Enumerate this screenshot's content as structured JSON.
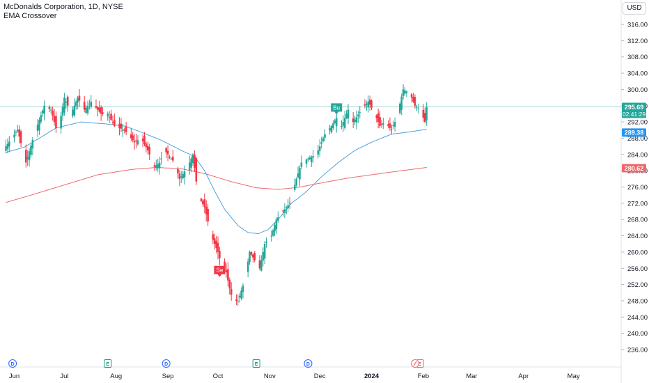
{
  "header": {
    "title": "McDonalds Corporation, 1D, NYSE",
    "indicator": "EMA Crossover",
    "currency_button": "USD"
  },
  "colors": {
    "up": "#26a69a",
    "down": "#f23645",
    "ema_fast": "#4aa3df",
    "ema_slow": "#f0676b",
    "price_line": "#26a69a",
    "buy_label": "#26a69a",
    "sell_label": "#f23645"
  },
  "chart_data": {
    "type": "candlestick",
    "ylim": [
      235.5,
      318.5
    ],
    "y_ticks": [
      "316.00",
      "312.00",
      "308.00",
      "304.00",
      "300.00",
      "296.00",
      "292.00",
      "288.00",
      "284.00",
      "280.00",
      "276.00",
      "272.00",
      "268.00",
      "264.00",
      "260.00",
      "256.00",
      "252.00",
      "248.00",
      "244.00",
      "240.00",
      "236.00"
    ],
    "x_ticks": [
      {
        "label": "Jun",
        "day": 0
      },
      {
        "label": "Jul",
        "day": 30
      },
      {
        "label": "Aug",
        "day": 61
      },
      {
        "label": "Sep",
        "day": 92
      },
      {
        "label": "Oct",
        "day": 122
      },
      {
        "label": "Nov",
        "day": 153
      },
      {
        "label": "Dec",
        "day": 183
      },
      {
        "label": "2024",
        "day": 214,
        "bold": true
      },
      {
        "label": "Feb",
        "day": 245
      },
      {
        "label": "Mar",
        "day": 274
      },
      {
        "label": "Apr",
        "day": 305
      },
      {
        "label": "May",
        "day": 335
      }
    ],
    "candle_anchors": [
      [
        -5,
        286
      ],
      [
        2,
        290
      ],
      [
        7,
        282
      ],
      [
        12,
        289
      ],
      [
        18,
        296
      ],
      [
        22,
        295
      ],
      [
        26,
        289
      ],
      [
        30,
        298
      ],
      [
        34,
        294
      ],
      [
        38,
        298
      ],
      [
        42,
        295
      ],
      [
        46,
        297
      ],
      [
        52,
        294
      ],
      [
        56,
        294
      ],
      [
        60,
        291
      ],
      [
        66,
        290
      ],
      [
        72,
        287
      ],
      [
        76,
        288
      ],
      [
        80,
        285
      ],
      [
        84,
        281
      ],
      [
        87,
        282
      ],
      [
        90,
        285
      ],
      [
        94,
        283
      ],
      [
        96,
        282
      ],
      [
        99,
        278
      ],
      [
        104,
        281
      ],
      [
        107,
        284
      ],
      [
        110,
        274
      ],
      [
        114,
        271
      ],
      [
        118,
        264
      ],
      [
        122,
        260
      ],
      [
        124,
        257
      ],
      [
        127,
        255
      ],
      [
        129,
        251
      ],
      [
        131,
        248
      ],
      [
        134,
        248
      ],
      [
        138,
        253
      ],
      [
        141,
        260
      ],
      [
        144,
        258
      ],
      [
        147,
        256
      ],
      [
        150,
        262
      ],
      [
        154,
        264
      ],
      [
        157,
        268
      ],
      [
        161,
        270
      ],
      [
        165,
        272
      ],
      [
        169,
        278
      ],
      [
        172,
        282
      ],
      [
        176,
        283
      ],
      [
        181,
        284
      ],
      [
        186,
        289
      ],
      [
        190,
        291
      ],
      [
        193,
        293
      ],
      [
        196,
        291
      ],
      [
        200,
        295
      ],
      [
        203,
        292
      ],
      [
        208,
        295
      ],
      [
        212,
        297
      ],
      [
        216,
        294
      ],
      [
        219,
        291
      ],
      [
        222,
        292
      ],
      [
        226,
        290
      ],
      [
        229,
        293
      ],
      [
        233,
        300
      ],
      [
        237,
        299
      ],
      [
        240,
        296
      ],
      [
        243,
        295
      ],
      [
        246,
        292
      ],
      [
        247,
        295.69
      ]
    ],
    "ema_fast": [
      [
        -5,
        284.5
      ],
      [
        6,
        285.8
      ],
      [
        15,
        288
      ],
      [
        25,
        290.5
      ],
      [
        40,
        292
      ],
      [
        55,
        291.5
      ],
      [
        66,
        291
      ],
      [
        76,
        289.5
      ],
      [
        88,
        287.5
      ],
      [
        100,
        285
      ],
      [
        108,
        283.5
      ],
      [
        114,
        280
      ],
      [
        120,
        275
      ],
      [
        126,
        270.5
      ],
      [
        134,
        266.5
      ],
      [
        140,
        264.8
      ],
      [
        146,
        264.5
      ],
      [
        152,
        265.5
      ],
      [
        158,
        268
      ],
      [
        166,
        272
      ],
      [
        174,
        274.5
      ],
      [
        184,
        278.5
      ],
      [
        194,
        282
      ],
      [
        204,
        285
      ],
      [
        214,
        287
      ],
      [
        226,
        289
      ],
      [
        236,
        289.5
      ],
      [
        247,
        290.2
      ]
    ],
    "ema_slow": [
      [
        -5,
        272.2
      ],
      [
        10,
        274
      ],
      [
        30,
        276.5
      ],
      [
        50,
        279
      ],
      [
        70,
        280.3
      ],
      [
        85,
        280.8
      ],
      [
        100,
        280.5
      ],
      [
        115,
        279.2
      ],
      [
        130,
        277.3
      ],
      [
        145,
        275.8
      ],
      [
        158,
        275.4
      ],
      [
        170,
        275.9
      ],
      [
        184,
        277
      ],
      [
        200,
        278.2
      ],
      [
        214,
        279
      ],
      [
        230,
        279.9
      ],
      [
        247,
        280.8
      ]
    ],
    "last_price": {
      "value": 295.69,
      "label": "295.69",
      "countdown": "02:41:29"
    },
    "ema_fast_last": {
      "value": 289.38,
      "label": "289.38"
    },
    "ema_slow_last": {
      "value": 280.62,
      "label": "280.62"
    },
    "signals": [
      {
        "type": "buy",
        "label": "Bu",
        "day": 193,
        "price": 293.5
      },
      {
        "type": "sell",
        "label": "Se",
        "day": 123,
        "price": 256.6
      }
    ],
    "events": [
      {
        "day": -1,
        "letter": "D"
      },
      {
        "day": 56,
        "letter": "E"
      },
      {
        "day": 91,
        "letter": "D"
      },
      {
        "day": 145,
        "letter": "E"
      },
      {
        "day": 176,
        "letter": "D"
      },
      {
        "day": 243,
        "letter": "E",
        "with_split": true
      }
    ]
  }
}
